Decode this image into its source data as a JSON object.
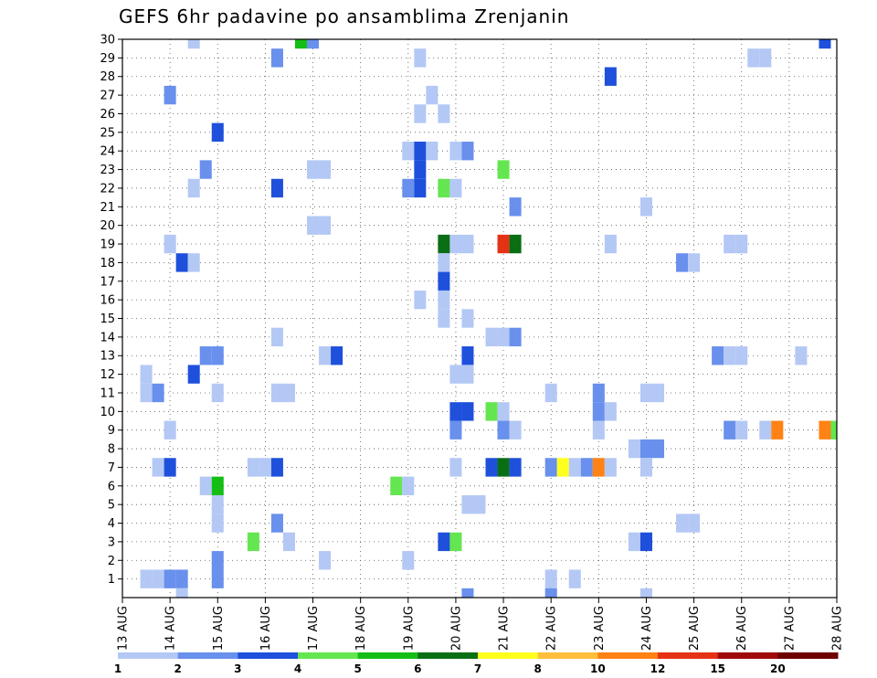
{
  "title": "GEFS 6hr padavine po ansamblima Zrenjanin",
  "chart_data": {
    "type": "heatmap",
    "title": "GEFS 6hr padavine po ansamblima Zrenjanin",
    "x_date_labels": [
      "13 AUG",
      "14 AUG",
      "15 AUG",
      "16 AUG",
      "17 AUG",
      "18 AUG",
      "19 AUG",
      "20 AUG",
      "21 AUG",
      "22 AUG",
      "23 AUG",
      "24 AUG",
      "25 AUG",
      "26 AUG",
      "27 AUG",
      "28 AUG"
    ],
    "x_range_days": [
      13,
      28
    ],
    "y_ticks": [
      1,
      2,
      3,
      4,
      5,
      6,
      7,
      8,
      9,
      10,
      11,
      12,
      13,
      14,
      15,
      16,
      17,
      18,
      19,
      20,
      21,
      22,
      23,
      24,
      25,
      26,
      27,
      28,
      29,
      30
    ],
    "y_range": [
      0,
      30
    ],
    "time_step_hours": 6,
    "grid": true,
    "color_scale": {
      "labels": [
        "1",
        "2",
        "3",
        "4",
        "5",
        "6",
        "7",
        "8",
        "10",
        "12",
        "15",
        "20"
      ],
      "colors": [
        "#b4c8f5",
        "#6890ec",
        "#1e50dc",
        "#64e650",
        "#14be14",
        "#0a6e14",
        "#ffff1e",
        "#ffbe3c",
        "#ff8214",
        "#e63214",
        "#a00a0a",
        "#6e0000"
      ]
    },
    "cells": [
      {
        "day": 14.5,
        "member": 30,
        "level": 0
      },
      {
        "day": 16.75,
        "member": 30,
        "level": 4
      },
      {
        "day": 17.0,
        "member": 30,
        "level": 1
      },
      {
        "day": 27.75,
        "member": 30,
        "level": 2
      },
      {
        "day": 16.25,
        "member": 29,
        "level": 1
      },
      {
        "day": 19.25,
        "member": 29,
        "level": 0
      },
      {
        "day": 26.25,
        "member": 29,
        "level": 0
      },
      {
        "day": 26.5,
        "member": 29,
        "level": 0
      },
      {
        "day": 23.25,
        "member": 28,
        "level": 2
      },
      {
        "day": 14.0,
        "member": 27,
        "level": 1
      },
      {
        "day": 19.5,
        "member": 27,
        "level": 0
      },
      {
        "day": 19.25,
        "member": 26,
        "level": 0
      },
      {
        "day": 19.75,
        "member": 26,
        "level": 0
      },
      {
        "day": 15.0,
        "member": 25,
        "level": 2
      },
      {
        "day": 19.0,
        "member": 24,
        "level": 0
      },
      {
        "day": 19.25,
        "member": 24,
        "level": 2
      },
      {
        "day": 19.5,
        "member": 24,
        "level": 0
      },
      {
        "day": 20.0,
        "member": 24,
        "level": 0
      },
      {
        "day": 20.25,
        "member": 24,
        "level": 1
      },
      {
        "day": 14.75,
        "member": 23,
        "level": 1
      },
      {
        "day": 17.0,
        "member": 23,
        "level": 0
      },
      {
        "day": 17.25,
        "member": 23,
        "level": 0
      },
      {
        "day": 19.25,
        "member": 23,
        "level": 2
      },
      {
        "day": 21.0,
        "member": 23,
        "level": 3
      },
      {
        "day": 14.5,
        "member": 22,
        "level": 0
      },
      {
        "day": 16.25,
        "member": 22,
        "level": 2
      },
      {
        "day": 19.0,
        "member": 22,
        "level": 1
      },
      {
        "day": 19.25,
        "member": 22,
        "level": 2
      },
      {
        "day": 19.75,
        "member": 22,
        "level": 3
      },
      {
        "day": 20.0,
        "member": 22,
        "level": 0
      },
      {
        "day": 21.25,
        "member": 21,
        "level": 1
      },
      {
        "day": 24.0,
        "member": 21,
        "level": 0
      },
      {
        "day": 17.0,
        "member": 20,
        "level": 0
      },
      {
        "day": 17.25,
        "member": 20,
        "level": 0
      },
      {
        "day": 14.0,
        "member": 19,
        "level": 0
      },
      {
        "day": 19.75,
        "member": 19,
        "level": 5
      },
      {
        "day": 20.0,
        "member": 19,
        "level": 0
      },
      {
        "day": 20.25,
        "member": 19,
        "level": 0
      },
      {
        "day": 21.0,
        "member": 19,
        "level": 9
      },
      {
        "day": 21.25,
        "member": 19,
        "level": 5
      },
      {
        "day": 23.25,
        "member": 19,
        "level": 0
      },
      {
        "day": 25.75,
        "member": 19,
        "level": 0
      },
      {
        "day": 26.0,
        "member": 19,
        "level": 0
      },
      {
        "day": 14.25,
        "member": 18,
        "level": 2
      },
      {
        "day": 14.5,
        "member": 18,
        "level": 0
      },
      {
        "day": 19.75,
        "member": 18,
        "level": 0
      },
      {
        "day": 24.75,
        "member": 18,
        "level": 1
      },
      {
        "day": 25.0,
        "member": 18,
        "level": 0
      },
      {
        "day": 19.75,
        "member": 17,
        "level": 2
      },
      {
        "day": 19.25,
        "member": 16,
        "level": 0
      },
      {
        "day": 19.75,
        "member": 16,
        "level": 0
      },
      {
        "day": 19.75,
        "member": 15,
        "level": 0
      },
      {
        "day": 20.25,
        "member": 15,
        "level": 0
      },
      {
        "day": 16.25,
        "member": 14,
        "level": 0
      },
      {
        "day": 20.75,
        "member": 14,
        "level": 0
      },
      {
        "day": 21.0,
        "member": 14,
        "level": 0
      },
      {
        "day": 21.25,
        "member": 14,
        "level": 1
      },
      {
        "day": 14.75,
        "member": 13,
        "level": 1
      },
      {
        "day": 15.0,
        "member": 13,
        "level": 1
      },
      {
        "day": 17.25,
        "member": 13,
        "level": 0
      },
      {
        "day": 17.5,
        "member": 13,
        "level": 2
      },
      {
        "day": 20.25,
        "member": 13,
        "level": 2
      },
      {
        "day": 25.5,
        "member": 13,
        "level": 1
      },
      {
        "day": 25.75,
        "member": 13,
        "level": 0
      },
      {
        "day": 26.0,
        "member": 13,
        "level": 0
      },
      {
        "day": 27.25,
        "member": 13,
        "level": 0
      },
      {
        "day": 13.5,
        "member": 12,
        "level": 0
      },
      {
        "day": 14.5,
        "member": 12,
        "level": 2
      },
      {
        "day": 20.0,
        "member": 12,
        "level": 0
      },
      {
        "day": 20.25,
        "member": 12,
        "level": 0
      },
      {
        "day": 13.5,
        "member": 11,
        "level": 0
      },
      {
        "day": 13.75,
        "member": 11,
        "level": 1
      },
      {
        "day": 15.0,
        "member": 11,
        "level": 0
      },
      {
        "day": 16.25,
        "member": 11,
        "level": 0
      },
      {
        "day": 16.5,
        "member": 11,
        "level": 0
      },
      {
        "day": 22.0,
        "member": 11,
        "level": 0
      },
      {
        "day": 23.0,
        "member": 11,
        "level": 1
      },
      {
        "day": 24.0,
        "member": 11,
        "level": 0
      },
      {
        "day": 24.25,
        "member": 11,
        "level": 0
      },
      {
        "day": 20.0,
        "member": 10,
        "level": 2
      },
      {
        "day": 20.25,
        "member": 10,
        "level": 2
      },
      {
        "day": 20.75,
        "member": 10,
        "level": 3
      },
      {
        "day": 21.0,
        "member": 10,
        "level": 0
      },
      {
        "day": 23.0,
        "member": 10,
        "level": 1
      },
      {
        "day": 23.25,
        "member": 10,
        "level": 0
      },
      {
        "day": 14.0,
        "member": 9,
        "level": 0
      },
      {
        "day": 20.0,
        "member": 9,
        "level": 1
      },
      {
        "day": 21.0,
        "member": 9,
        "level": 1
      },
      {
        "day": 21.25,
        "member": 9,
        "level": 0
      },
      {
        "day": 23.0,
        "member": 9,
        "level": 0
      },
      {
        "day": 25.75,
        "member": 9,
        "level": 1
      },
      {
        "day": 26.0,
        "member": 9,
        "level": 0
      },
      {
        "day": 26.5,
        "member": 9,
        "level": 0
      },
      {
        "day": 26.75,
        "member": 9,
        "level": 8
      },
      {
        "day": 27.75,
        "member": 9,
        "level": 8
      },
      {
        "day": 28.0,
        "member": 9,
        "level": 3
      },
      {
        "day": 23.75,
        "member": 8,
        "level": 0
      },
      {
        "day": 24.0,
        "member": 8,
        "level": 1
      },
      {
        "day": 24.25,
        "member": 8,
        "level": 1
      },
      {
        "day": 13.75,
        "member": 7,
        "level": 0
      },
      {
        "day": 14.0,
        "member": 7,
        "level": 2
      },
      {
        "day": 15.75,
        "member": 7,
        "level": 0
      },
      {
        "day": 16.0,
        "member": 7,
        "level": 0
      },
      {
        "day": 16.25,
        "member": 7,
        "level": 2
      },
      {
        "day": 20.0,
        "member": 7,
        "level": 0
      },
      {
        "day": 20.75,
        "member": 7,
        "level": 2
      },
      {
        "day": 21.0,
        "member": 7,
        "level": 5
      },
      {
        "day": 21.25,
        "member": 7,
        "level": 2
      },
      {
        "day": 22.0,
        "member": 7,
        "level": 1
      },
      {
        "day": 22.25,
        "member": 7,
        "level": 6
      },
      {
        "day": 22.5,
        "member": 7,
        "level": 0
      },
      {
        "day": 22.75,
        "member": 7,
        "level": 1
      },
      {
        "day": 23.0,
        "member": 7,
        "level": 8
      },
      {
        "day": 23.25,
        "member": 7,
        "level": 0
      },
      {
        "day": 24.0,
        "member": 7,
        "level": 0
      },
      {
        "day": 14.75,
        "member": 6,
        "level": 0
      },
      {
        "day": 15.0,
        "member": 6,
        "level": 4
      },
      {
        "day": 18.75,
        "member": 6,
        "level": 3
      },
      {
        "day": 19.0,
        "member": 6,
        "level": 0
      },
      {
        "day": 15.0,
        "member": 5,
        "level": 0
      },
      {
        "day": 20.25,
        "member": 5,
        "level": 0
      },
      {
        "day": 20.5,
        "member": 5,
        "level": 0
      },
      {
        "day": 15.0,
        "member": 4,
        "level": 0
      },
      {
        "day": 16.25,
        "member": 4,
        "level": 1
      },
      {
        "day": 24.75,
        "member": 4,
        "level": 0
      },
      {
        "day": 25.0,
        "member": 4,
        "level": 0
      },
      {
        "day": 15.75,
        "member": 3,
        "level": 3
      },
      {
        "day": 16.5,
        "member": 3,
        "level": 0
      },
      {
        "day": 19.75,
        "member": 3,
        "level": 2
      },
      {
        "day": 20.0,
        "member": 3,
        "level": 3
      },
      {
        "day": 23.75,
        "member": 3,
        "level": 0
      },
      {
        "day": 24.0,
        "member": 3,
        "level": 2
      },
      {
        "day": 15.0,
        "member": 2,
        "level": 1
      },
      {
        "day": 17.25,
        "member": 2,
        "level": 0
      },
      {
        "day": 19.0,
        "member": 2,
        "level": 0
      },
      {
        "day": 13.5,
        "member": 1,
        "level": 0
      },
      {
        "day": 13.75,
        "member": 1,
        "level": 0
      },
      {
        "day": 14.0,
        "member": 1,
        "level": 1
      },
      {
        "day": 14.25,
        "member": 1,
        "level": 1
      },
      {
        "day": 15.0,
        "member": 1,
        "level": 1
      },
      {
        "day": 22.0,
        "member": 1,
        "level": 0
      },
      {
        "day": 22.5,
        "member": 1,
        "level": 0
      },
      {
        "day": 14.25,
        "member": 0,
        "level": 0
      },
      {
        "day": 20.25,
        "member": 0,
        "level": 1
      },
      {
        "day": 22.0,
        "member": 0,
        "level": 1
      },
      {
        "day": 24.0,
        "member": 0,
        "level": 0
      }
    ]
  }
}
